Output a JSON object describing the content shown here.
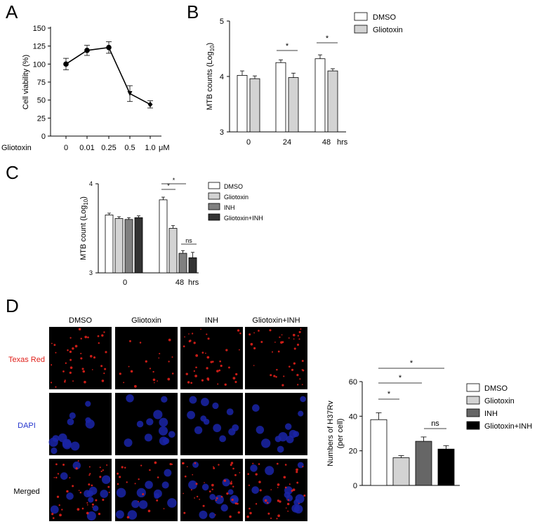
{
  "panels": {
    "A": {
      "letter": "A",
      "chart_data": {
        "type": "line",
        "ylabel": "Cell viability (%)",
        "xlabel_prefix": "Gliotoxin",
        "x_unit": "μM",
        "categories": [
          "0",
          "0.01",
          "0.25",
          "0.5",
          "1.0"
        ],
        "values": [
          100,
          119,
          123,
          59,
          44
        ],
        "errors": [
          8,
          7,
          8,
          11,
          5
        ],
        "ylim": [
          0,
          150
        ],
        "yticks": [
          "0",
          "25",
          "50",
          "75",
          "100",
          "125",
          "150"
        ]
      }
    },
    "B": {
      "letter": "B",
      "chart_data": {
        "type": "bar",
        "ylabel": "MTB counts (Log10)",
        "ylabel_main": "MTB counts (Log",
        "ylabel_sub": "10",
        "ylabel_tail": ")",
        "categories": [
          "0",
          "24",
          "48"
        ],
        "x_unit": "hrs",
        "ylim": [
          3,
          5
        ],
        "yticks": [
          "3",
          "4",
          "5"
        ],
        "series": [
          {
            "name": "DMSO",
            "values": [
              4.02,
              4.25,
              4.32
            ],
            "errors": [
              0.08,
              0.05,
              0.07
            ],
            "color": "#ffffff"
          },
          {
            "name": "Gliotoxin",
            "values": [
              3.96,
              3.98,
              4.1
            ],
            "errors": [
              0.05,
              0.08,
              0.04
            ],
            "color": "#d3d3d3"
          }
        ],
        "annotations": [
          "*",
          "*"
        ]
      }
    },
    "C": {
      "letter": "C",
      "chart_data": {
        "type": "bar",
        "ylabel": "MTB count (Log10)",
        "ylabel_main": "MTB count (Log",
        "ylabel_sub": "10",
        "ylabel_tail": ")",
        "categories": [
          "0",
          "48"
        ],
        "x_unit": "hrs",
        "ylim": [
          3,
          4
        ],
        "yticks": [
          "3",
          "4"
        ],
        "series": [
          {
            "name": "DMSO",
            "values": [
              3.65,
              3.82
            ],
            "errors": [
              0.02,
              0.03
            ],
            "color": "#ffffff"
          },
          {
            "name": "Gliotoxin",
            "values": [
              3.61,
              3.5
            ],
            "errors": [
              0.02,
              0.03
            ],
            "color": "#d3d3d3"
          },
          {
            "name": "INH",
            "values": [
              3.6,
              3.22
            ],
            "errors": [
              0.02,
              0.03
            ],
            "color": "#808080"
          },
          {
            "name": "Gliotoxin+INH",
            "values": [
              3.62,
              3.17
            ],
            "errors": [
              0.02,
              0.06
            ],
            "color": "#333333"
          }
        ],
        "annotations": [
          "*",
          "*",
          "ns"
        ]
      }
    },
    "D": {
      "letter": "D",
      "microscopy": {
        "columns": [
          "DMSO",
          "Gliotoxin",
          "INH",
          "Gliotoxin+INH"
        ],
        "rows": [
          {
            "label": "Texas Red",
            "color": "#e0201a"
          },
          {
            "label": "DAPI",
            "color": "#2233cc"
          },
          {
            "label": "Merged",
            "color": "#000000"
          }
        ]
      },
      "chart_data": {
        "type": "bar",
        "ylabel_line1": "Numbers of H37Rv",
        "ylabel_line2": "(per cell)",
        "categories": [
          "DMSO",
          "Gliotoxin",
          "INH",
          "Gliotoxin+INH"
        ],
        "values": [
          38,
          16,
          25.5,
          21
        ],
        "errors": [
          4,
          1.2,
          2.5,
          2
        ],
        "colors": [
          "#ffffff",
          "#d3d3d3",
          "#666666",
          "#000000"
        ],
        "ylim": [
          0,
          60
        ],
        "yticks": [
          "0",
          "20",
          "40",
          "60"
        ],
        "annotations": [
          "*",
          "*",
          "*",
          "ns"
        ]
      }
    }
  }
}
